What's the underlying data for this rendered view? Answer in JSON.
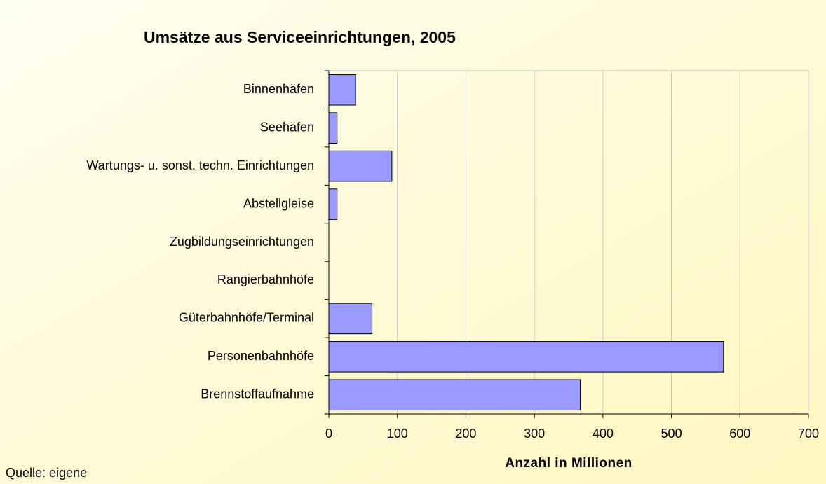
{
  "chart_data": {
    "type": "bar",
    "orientation": "horizontal",
    "title": "Umsätze aus Serviceeinrichtungen, 2005",
    "x_label": "Anzahl in Millionen",
    "source": "Quelle: eigene",
    "categories": [
      "Binnenhäfen",
      "Seehäfen",
      "Wartungs- u. sonst. techn. Einrichtungen",
      "Abstellgleise",
      "Zugbildungseinrichtungen",
      "Rangierbahnhöfe",
      "Güterbahnhöfe/Terminal",
      "Personenbahnhöfe",
      "Brennstoffaufnahme"
    ],
    "values": [
      39,
      12,
      92,
      12,
      0,
      0,
      63,
      576,
      367
    ],
    "color": "#9999ff",
    "xlim": [
      0,
      700
    ],
    "xticks": [
      0,
      100,
      200,
      300,
      400,
      500,
      600,
      700
    ],
    "grid": true
  }
}
